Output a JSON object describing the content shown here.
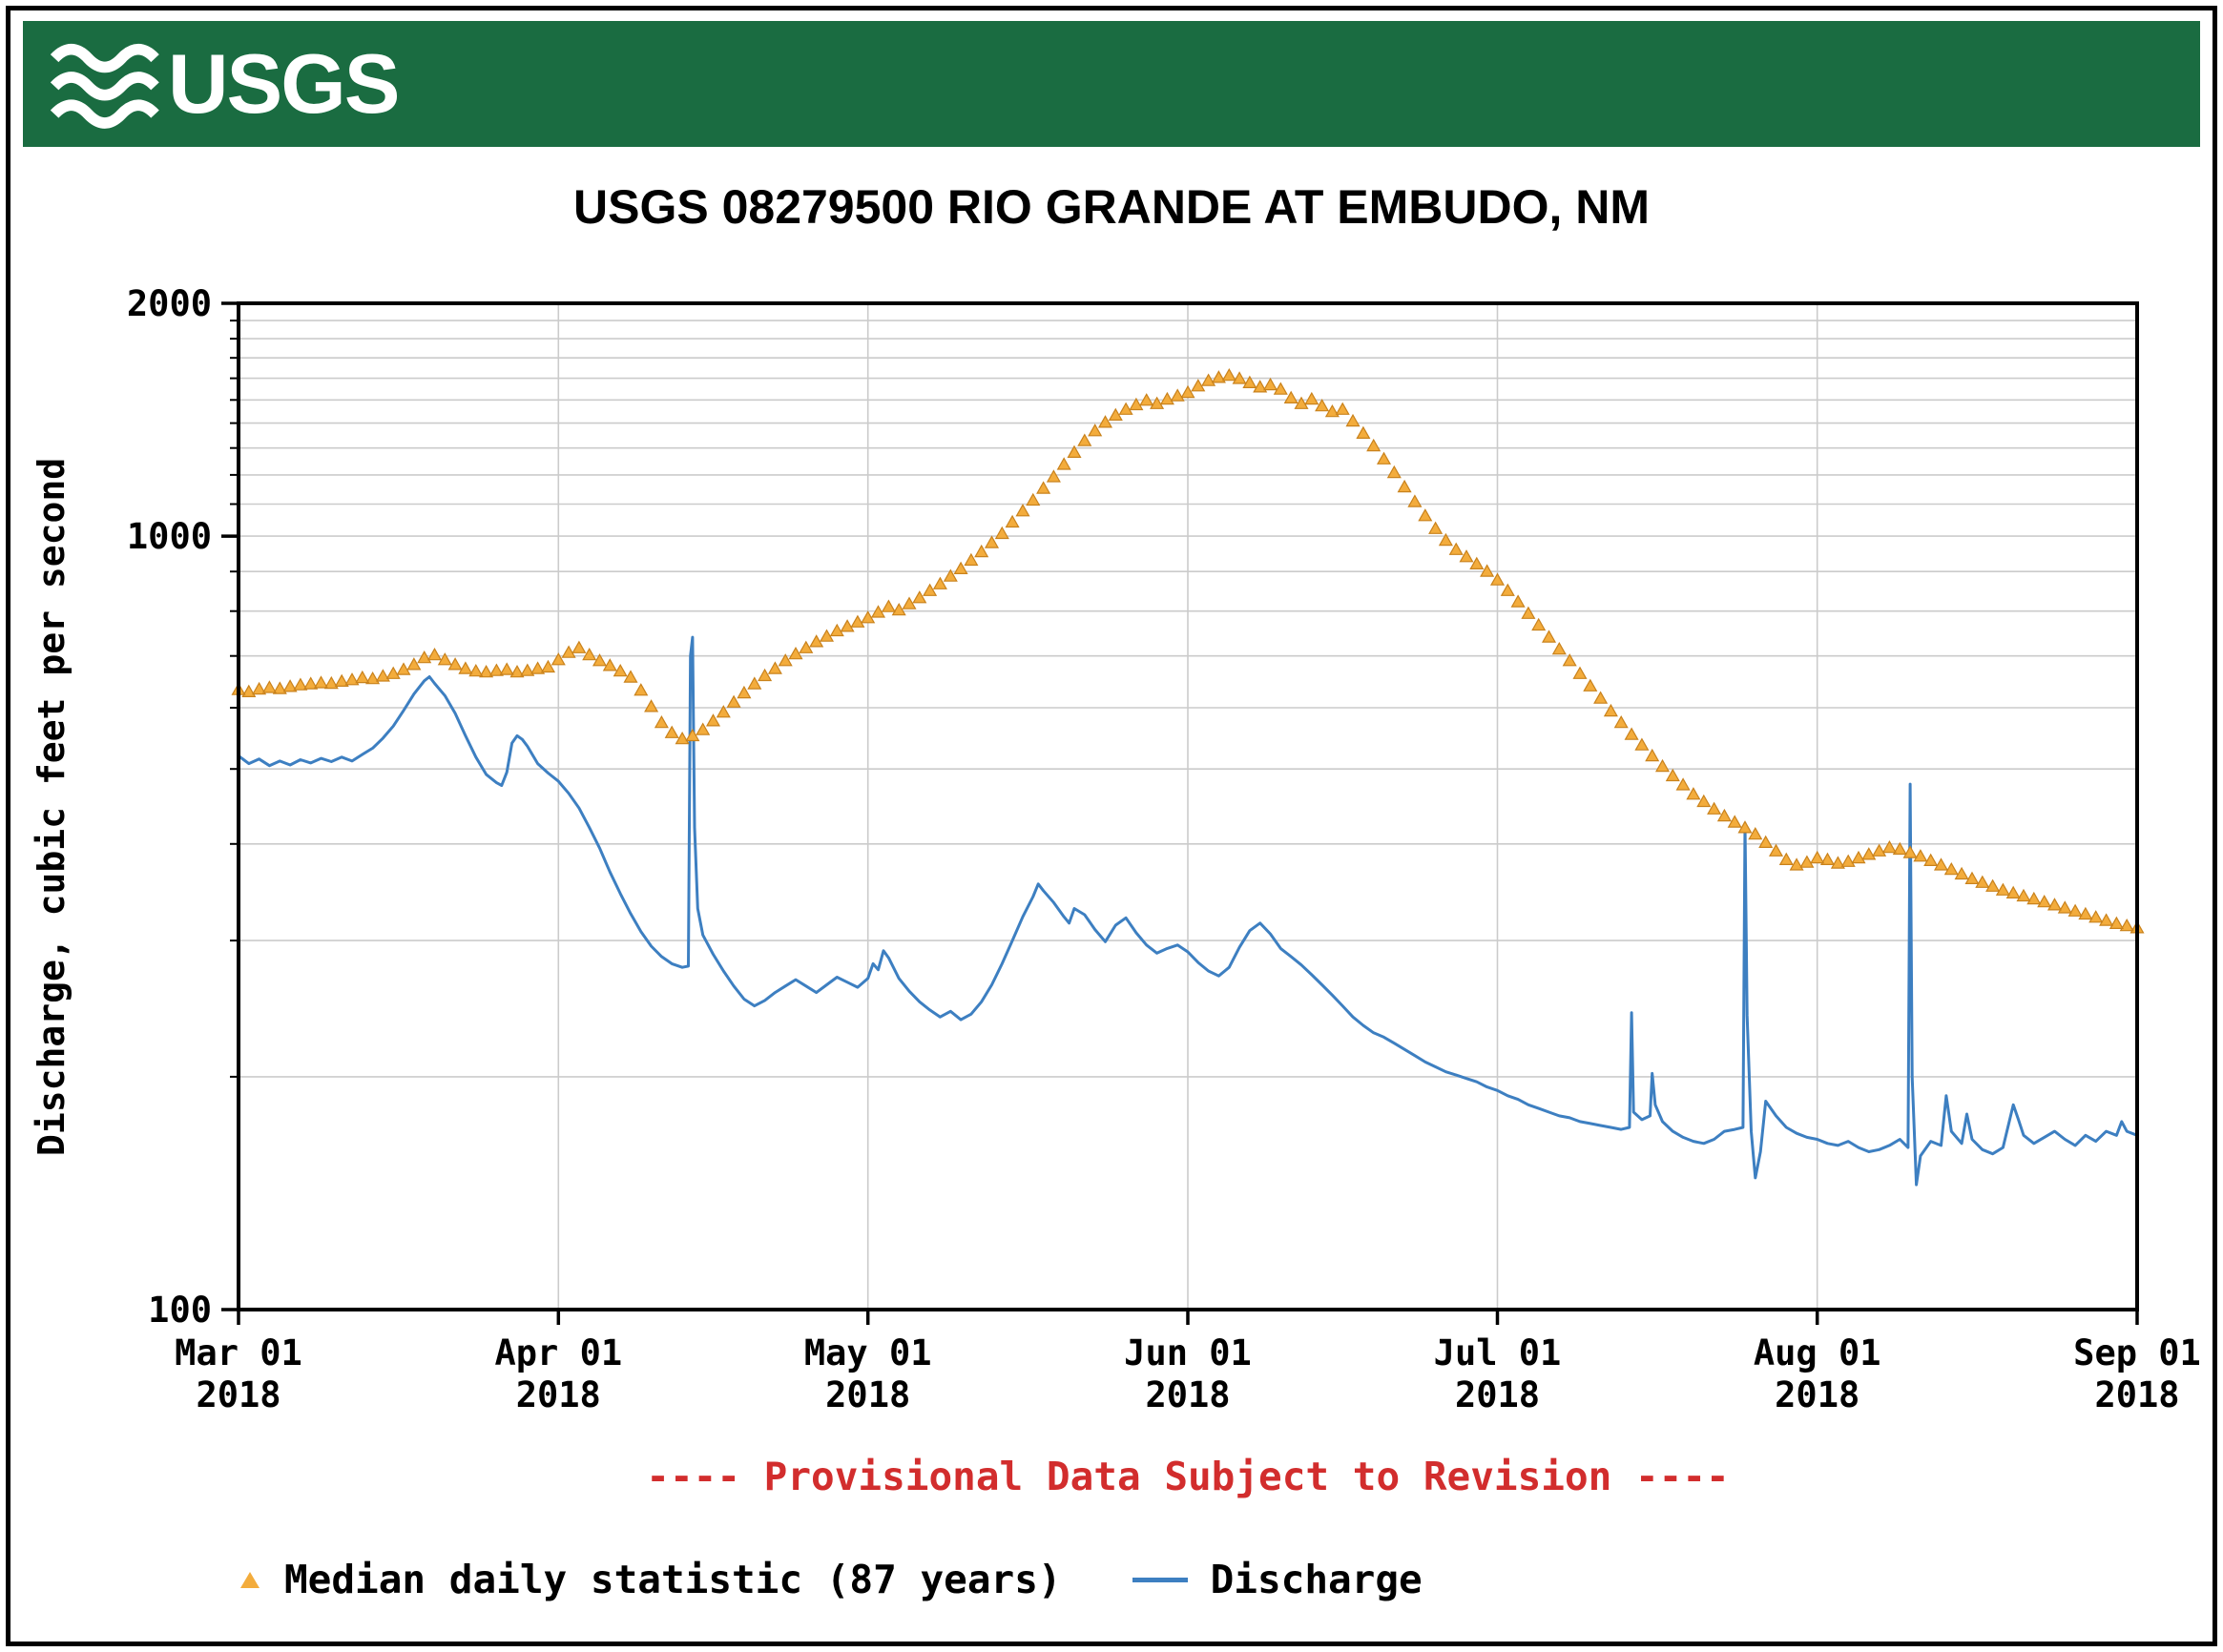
{
  "header": {
    "logo_text": "USGS",
    "banner_color": "#1a6c41"
  },
  "chart_data": {
    "type": "line",
    "title": "USGS 08279500 RIO GRANDE AT EMBUDO, NM",
    "ylabel": "Discharge, cubic feet per second",
    "provisional_note": "---- Provisional Data Subject to Revision ----",
    "note_color": "#d22d2d",
    "grid_color": "#cbcbcb",
    "y_axis": {
      "scale": "log",
      "min": 100,
      "max": 2000,
      "labeled_ticks": [
        {
          "value": 2000,
          "label": "2000"
        },
        {
          "value": 1000,
          "label": "1000"
        },
        {
          "value": 100,
          "label": "100"
        }
      ],
      "gridlines": [
        200,
        300,
        400,
        500,
        600,
        700,
        800,
        900,
        1000,
        1100,
        1200,
        1300,
        1400,
        1500,
        1600,
        1700,
        1800,
        1900
      ]
    },
    "x_axis": {
      "start_day": 0,
      "end_day": 184,
      "ticks": [
        {
          "day": 0,
          "line1": "Mar 01",
          "line2": "2018"
        },
        {
          "day": 31,
          "line1": "Apr 01",
          "line2": "2018"
        },
        {
          "day": 61,
          "line1": "May 01",
          "line2": "2018"
        },
        {
          "day": 92,
          "line1": "Jun 01",
          "line2": "2018"
        },
        {
          "day": 122,
          "line1": "Jul 01",
          "line2": "2018"
        },
        {
          "day": 153,
          "line1": "Aug 01",
          "line2": "2018"
        },
        {
          "day": 184,
          "line1": "Sep 01",
          "line2": "2018"
        }
      ]
    },
    "series": [
      {
        "name": "Median daily statistic (87 years)",
        "type": "points",
        "marker": "triangle",
        "color": "#F3AC3C",
        "edge_color": "#C9821C",
        "values_daily": [
          632,
          628,
          633,
          636,
          634,
          638,
          641,
          643,
          645,
          644,
          648,
          651,
          655,
          653,
          658,
          663,
          671,
          681,
          695,
          701,
          691,
          681,
          673,
          668,
          666,
          669,
          671,
          666,
          669,
          673,
          676,
          691,
          706,
          716,
          701,
          689,
          679,
          668,
          656,
          631,
          601,
          573,
          556,
          546,
          551,
          561,
          576,
          591,
          609,
          626,
          643,
          659,
          673,
          689,
          703,
          716,
          729,
          741,
          753,
          763,
          773,
          783,
          796,
          809,
          801,
          816,
          831,
          849,
          866,
          886,
          906,
          929,
          953,
          979,
          1006,
          1041,
          1076,
          1111,
          1151,
          1191,
          1236,
          1281,
          1326,
          1366,
          1401,
          1431,
          1456,
          1476,
          1496,
          1481,
          1501,
          1516,
          1531,
          1561,
          1586,
          1601,
          1611,
          1596,
          1576,
          1556,
          1566,
          1546,
          1506,
          1481,
          1501,
          1471,
          1446,
          1456,
          1406,
          1356,
          1306,
          1256,
          1206,
          1156,
          1106,
          1061,
          1021,
          986,
          959,
          939,
          919,
          899,
          876,
          849,
          821,
          793,
          766,
          739,
          713,
          689,
          663,
          639,
          616,
          593,
          573,
          553,
          536,
          519,
          503,
          489,
          476,
          463,
          453,
          443,
          434,
          426,
          419,
          411,
          401,
          391,
          381,
          375,
          378,
          383,
          381,
          377,
          379,
          383,
          387,
          391,
          395,
          393,
          389,
          385,
          380,
          375,
          370,
          365,
          360,
          356,
          352,
          348,
          345,
          342,
          339,
          336,
          333,
          330,
          327,
          324,
          321,
          318,
          315,
          313,
          311
        ]
      },
      {
        "name": "Discharge",
        "type": "line",
        "color": "#3d7fc1",
        "points": [
          [
            0,
            520
          ],
          [
            1,
            508
          ],
          [
            2,
            515
          ],
          [
            3,
            505
          ],
          [
            4,
            512
          ],
          [
            5,
            506
          ],
          [
            6,
            514
          ],
          [
            7,
            509
          ],
          [
            8,
            516
          ],
          [
            9,
            511
          ],
          [
            10,
            518
          ],
          [
            11,
            512
          ],
          [
            12,
            522
          ],
          [
            13,
            532
          ],
          [
            14,
            548
          ],
          [
            15,
            568
          ],
          [
            16,
            595
          ],
          [
            17,
            625
          ],
          [
            18,
            650
          ],
          [
            18.5,
            658
          ],
          [
            19,
            645
          ],
          [
            20,
            622
          ],
          [
            21,
            590
          ],
          [
            22,
            552
          ],
          [
            23,
            518
          ],
          [
            24,
            492
          ],
          [
            25,
            480
          ],
          [
            25.5,
            476
          ],
          [
            26,
            495
          ],
          [
            26.5,
            540
          ],
          [
            27,
            552
          ],
          [
            27.5,
            546
          ],
          [
            28,
            535
          ],
          [
            29,
            508
          ],
          [
            30,
            494
          ],
          [
            31,
            482
          ],
          [
            32,
            465
          ],
          [
            33,
            445
          ],
          [
            34,
            420
          ],
          [
            35,
            395
          ],
          [
            36,
            368
          ],
          [
            37,
            345
          ],
          [
            38,
            325
          ],
          [
            39,
            308
          ],
          [
            40,
            295
          ],
          [
            41,
            286
          ],
          [
            42,
            280
          ],
          [
            43,
            277
          ],
          [
            43.6,
            278
          ],
          [
            43.8,
            700
          ],
          [
            44,
            740
          ],
          [
            44.2,
            420
          ],
          [
            44.5,
            330
          ],
          [
            45,
            305
          ],
          [
            46,
            288
          ],
          [
            47,
            274
          ],
          [
            48,
            262
          ],
          [
            49,
            252
          ],
          [
            50,
            247
          ],
          [
            51,
            251
          ],
          [
            52,
            257
          ],
          [
            53,
            262
          ],
          [
            54,
            267
          ],
          [
            55,
            262
          ],
          [
            56,
            257
          ],
          [
            57,
            263
          ],
          [
            58,
            269
          ],
          [
            59,
            265
          ],
          [
            60,
            261
          ],
          [
            61,
            268
          ],
          [
            61.5,
            280
          ],
          [
            62,
            275
          ],
          [
            62.5,
            291
          ],
          [
            63,
            285
          ],
          [
            64,
            268
          ],
          [
            65,
            258
          ],
          [
            66,
            250
          ],
          [
            67,
            244
          ],
          [
            68,
            239
          ],
          [
            69,
            243
          ],
          [
            70,
            237
          ],
          [
            71,
            241
          ],
          [
            72,
            250
          ],
          [
            73,
            263
          ],
          [
            74,
            280
          ],
          [
            75,
            300
          ],
          [
            76,
            322
          ],
          [
            77,
            342
          ],
          [
            77.5,
            355
          ],
          [
            78,
            348
          ],
          [
            79,
            336
          ],
          [
            80,
            322
          ],
          [
            80.5,
            316
          ],
          [
            81,
            330
          ],
          [
            82,
            324
          ],
          [
            83,
            310
          ],
          [
            84,
            299
          ],
          [
            85,
            314
          ],
          [
            86,
            321
          ],
          [
            87,
            307
          ],
          [
            88,
            296
          ],
          [
            89,
            289
          ],
          [
            90,
            293
          ],
          [
            91,
            296
          ],
          [
            92,
            290
          ],
          [
            93,
            281
          ],
          [
            94,
            274
          ],
          [
            95,
            270
          ],
          [
            96,
            277
          ],
          [
            97,
            294
          ],
          [
            98,
            309
          ],
          [
            99,
            316
          ],
          [
            100,
            306
          ],
          [
            101,
            293
          ],
          [
            102,
            286
          ],
          [
            103,
            279
          ],
          [
            104,
            271
          ],
          [
            105,
            263
          ],
          [
            106,
            255
          ],
          [
            107,
            247
          ],
          [
            108,
            239
          ],
          [
            109,
            233
          ],
          [
            110,
            228
          ],
          [
            111,
            225
          ],
          [
            112,
            221
          ],
          [
            113,
            217
          ],
          [
            114,
            213
          ],
          [
            115,
            209
          ],
          [
            116,
            206
          ],
          [
            117,
            203
          ],
          [
            118,
            201
          ],
          [
            119,
            199
          ],
          [
            120,
            197
          ],
          [
            121,
            194
          ],
          [
            122,
            192
          ],
          [
            123,
            189
          ],
          [
            124,
            187
          ],
          [
            125,
            184
          ],
          [
            126,
            182
          ],
          [
            127,
            180
          ],
          [
            128,
            178
          ],
          [
            129,
            177
          ],
          [
            130,
            175
          ],
          [
            131,
            174
          ],
          [
            132,
            173
          ],
          [
            133,
            172
          ],
          [
            134,
            171
          ],
          [
            134.8,
            172
          ],
          [
            135,
            242
          ],
          [
            135.2,
            180
          ],
          [
            136,
            176
          ],
          [
            136.8,
            178
          ],
          [
            137,
            202
          ],
          [
            137.3,
            184
          ],
          [
            138,
            175
          ],
          [
            139,
            170
          ],
          [
            140,
            167
          ],
          [
            141,
            165
          ],
          [
            142,
            164
          ],
          [
            143,
            166
          ],
          [
            144,
            170
          ],
          [
            145,
            171
          ],
          [
            145.8,
            172
          ],
          [
            146,
            425
          ],
          [
            146.2,
            240
          ],
          [
            146.6,
            170
          ],
          [
            147,
            148
          ],
          [
            147.5,
            160
          ],
          [
            148,
            186
          ],
          [
            149,
            178
          ],
          [
            150,
            172
          ],
          [
            151,
            169
          ],
          [
            152,
            167
          ],
          [
            153,
            166
          ],
          [
            154,
            164
          ],
          [
            155,
            163
          ],
          [
            156,
            165
          ],
          [
            157,
            162
          ],
          [
            158,
            160
          ],
          [
            159,
            161
          ],
          [
            160,
            163
          ],
          [
            161,
            166
          ],
          [
            161.8,
            162
          ],
          [
            162,
            478
          ],
          [
            162.2,
            200
          ],
          [
            162.6,
            145
          ],
          [
            163,
            158
          ],
          [
            164,
            165
          ],
          [
            165,
            163
          ],
          [
            165.5,
            189
          ],
          [
            166,
            170
          ],
          [
            167,
            164
          ],
          [
            167.5,
            179
          ],
          [
            168,
            166
          ],
          [
            169,
            161
          ],
          [
            170,
            159
          ],
          [
            171,
            162
          ],
          [
            172,
            184
          ],
          [
            172.5,
            176
          ],
          [
            173,
            168
          ],
          [
            174,
            164
          ],
          [
            175,
            167
          ],
          [
            176,
            170
          ],
          [
            177,
            166
          ],
          [
            178,
            163
          ],
          [
            179,
            168
          ],
          [
            180,
            165
          ],
          [
            181,
            170
          ],
          [
            182,
            168
          ],
          [
            182.5,
            175
          ],
          [
            183,
            170
          ],
          [
            184,
            168
          ]
        ]
      }
    ]
  },
  "legend": {
    "items": [
      {
        "label": "Median daily statistic (87 years)",
        "marker": "triangle",
        "color": "#F3AC3C"
      },
      {
        "label": "Discharge",
        "marker": "line",
        "color": "#3d7fc1"
      }
    ]
  }
}
